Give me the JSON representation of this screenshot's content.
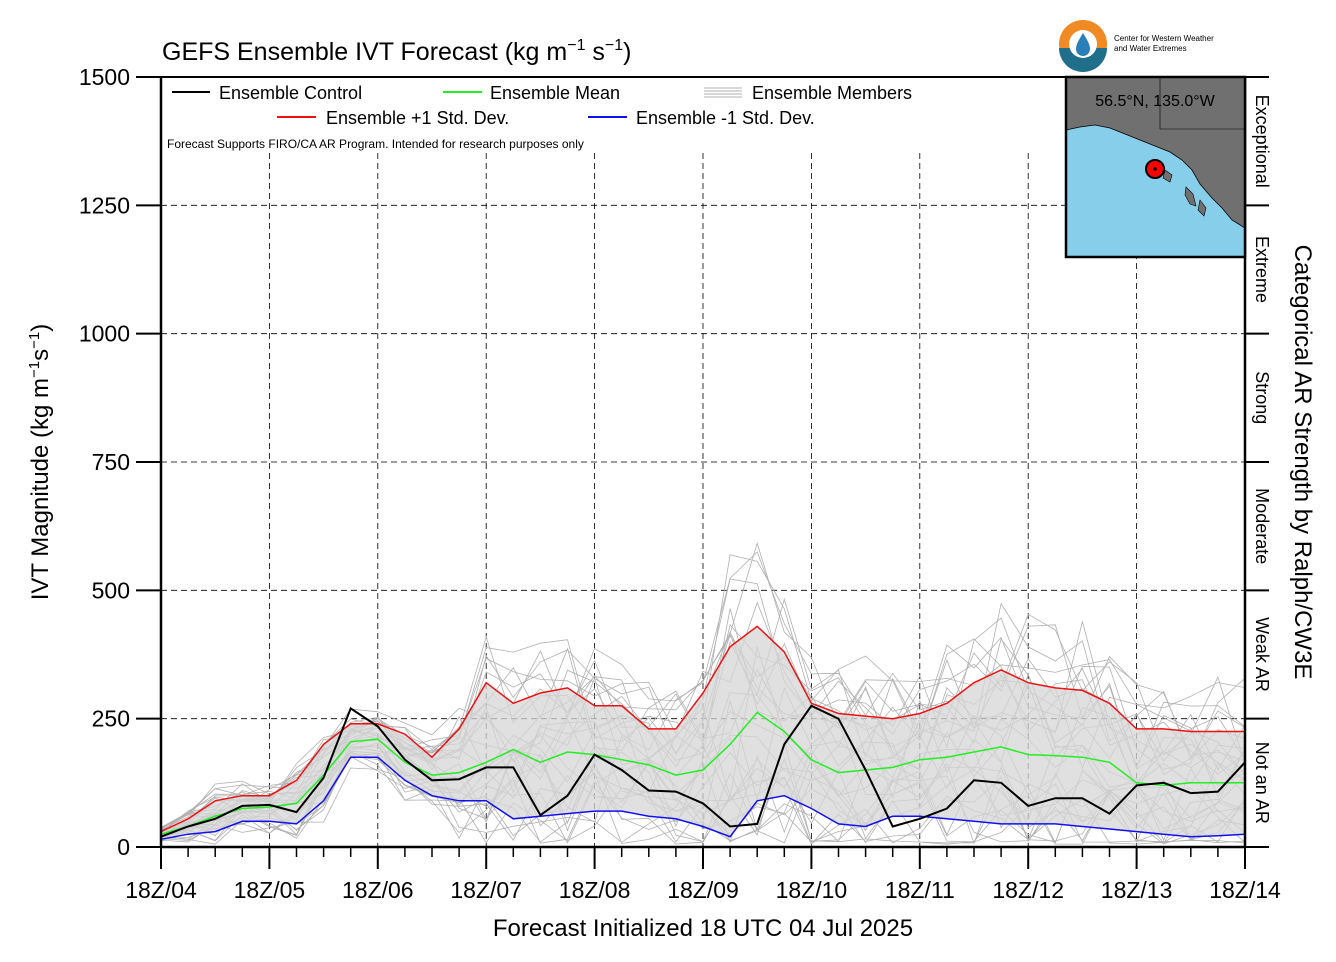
{
  "title": "GEFS Ensemble IVT Forecast (kg m",
  "title_exp1": "−1",
  "title_mid": " s",
  "title_exp2": "−1",
  "title_end": ")",
  "logo_text": [
    "Center for Western Weather",
    "and Water Extremes"
  ],
  "disclaimer": "Forecast Supports FIRO/CA AR Program. Intended for research purposes only",
  "inset": {
    "location": "56.5°N, 135.0°W"
  },
  "right_axis_title": "Categorical AR Strength by Ralph/CW3E",
  "categories": [
    "Exceptional",
    "Extreme",
    "Strong",
    "Moderate",
    "Weak AR",
    "Not an AR"
  ],
  "colors": {
    "control": "#000000",
    "mean": "#22ee22",
    "plus_sd": "#ee1111",
    "minus_sd": "#1111ee",
    "members": "#b0b0b0",
    "spread_fill": "#d6d6d6",
    "ocean": "#87ceeb",
    "land": "#707070"
  },
  "chart_data": {
    "type": "line",
    "xlabel": "Forecast Initialized 18 UTC 04 Jul 2025",
    "ylabel_main": "IVT Magnitude (kg m",
    "ylabel_exp1": "−1",
    "ylabel_mid": "s",
    "ylabel_exp2": "−1",
    "ylabel_end": ")",
    "xlim": [
      0,
      240
    ],
    "ylim": [
      0,
      1500
    ],
    "x_tick_labels": [
      "18Z/04",
      "18Z/05",
      "18Z/06",
      "18Z/07",
      "18Z/08",
      "18Z/09",
      "18Z/10",
      "18Z/11",
      "18Z/12",
      "18Z/13",
      "18Z/14"
    ],
    "y_ticks": [
      0,
      250,
      500,
      750,
      1000,
      1250,
      1500
    ],
    "y_tick_labels": [
      "0",
      "250",
      "500",
      "750",
      "1000",
      "1250",
      "1500"
    ],
    "grid": true,
    "legend": [
      "Ensemble Control",
      "Ensemble Mean",
      "Ensemble Members",
      "Ensemble +1 Std. Dev.",
      "Ensemble -1 Std. Dev."
    ],
    "category_bounds": [
      0,
      250,
      500,
      750,
      1000,
      1250,
      1500
    ],
    "x_hours": [
      0,
      6,
      12,
      18,
      24,
      30,
      36,
      42,
      48,
      54,
      60,
      66,
      72,
      78,
      84,
      90,
      96,
      102,
      108,
      114,
      120,
      126,
      132,
      138,
      144,
      150,
      156,
      162,
      168,
      174,
      180,
      186,
      192,
      198,
      204,
      210,
      216,
      222,
      228,
      234,
      240
    ],
    "series": [
      {
        "name": "Ensemble Control",
        "values": [
          20,
          40,
          55,
          80,
          82,
          68,
          135,
          270,
          235,
          170,
          130,
          132,
          155,
          155,
          62,
          100,
          180,
          150,
          110,
          108,
          85,
          40,
          45,
          200,
          275,
          250,
          150,
          40,
          55,
          75,
          130,
          125,
          80,
          95,
          95,
          65,
          120,
          125,
          105,
          108,
          165
        ]
      },
      {
        "name": "Ensemble Mean",
        "values": [
          25,
          40,
          60,
          75,
          78,
          85,
          140,
          205,
          210,
          165,
          140,
          145,
          165,
          190,
          165,
          185,
          180,
          170,
          160,
          140,
          150,
          200,
          262,
          225,
          170,
          145,
          150,
          155,
          170,
          175,
          185,
          195,
          180,
          178,
          175,
          165,
          125,
          120,
          125,
          125,
          125
        ]
      },
      {
        "name": "Ensemble +1 Std. Dev.",
        "values": [
          30,
          55,
          90,
          100,
          100,
          130,
          200,
          240,
          240,
          220,
          175,
          230,
          320,
          280,
          300,
          310,
          275,
          275,
          230,
          230,
          300,
          390,
          430,
          380,
          280,
          260,
          255,
          250,
          260,
          280,
          320,
          345,
          320,
          310,
          305,
          280,
          230,
          230,
          225,
          225,
          225
        ]
      },
      {
        "name": "Ensemble -1 Std. Dev.",
        "values": [
          15,
          25,
          30,
          50,
          50,
          45,
          90,
          175,
          175,
          130,
          100,
          90,
          90,
          55,
          60,
          65,
          70,
          70,
          60,
          55,
          40,
          20,
          90,
          100,
          75,
          45,
          40,
          60,
          60,
          55,
          50,
          45,
          45,
          45,
          40,
          35,
          30,
          25,
          20,
          22,
          25
        ]
      }
    ]
  }
}
